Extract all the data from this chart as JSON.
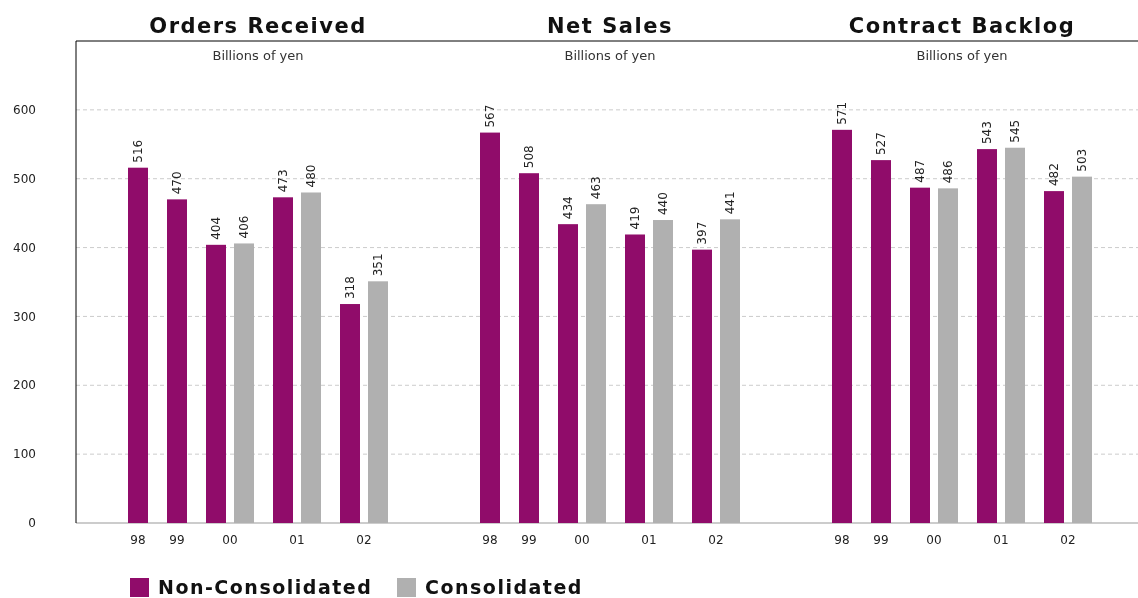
{
  "chart_data": [
    {
      "type": "bar",
      "title": "Orders Received",
      "subtitle": "Billions of yen",
      "categories": [
        "98",
        "99",
        "00",
        "01",
        "02"
      ],
      "series": [
        {
          "name": "Non-Consolidated",
          "color": "#900c6a",
          "values": [
            516,
            470,
            404,
            473,
            318
          ]
        },
        {
          "name": "Consolidated",
          "color": "#b0b0b0",
          "values": [
            null,
            null,
            406,
            480,
            351
          ]
        }
      ],
      "ylim": [
        0,
        700
      ],
      "yticks": [
        0,
        100,
        200,
        300,
        400,
        500,
        600
      ],
      "grid": "y",
      "data_labels": true,
      "legend": "bottom"
    },
    {
      "type": "bar",
      "title": "Net Sales",
      "subtitle": "Billions of yen",
      "categories": [
        "98",
        "99",
        "00",
        "01",
        "02"
      ],
      "series": [
        {
          "color": "#900c6a",
          "values": [
            567,
            508,
            434,
            419,
            397
          ]
        },
        {
          "color": "#b0b0b0",
          "values": [
            null,
            null,
            463,
            440,
            441
          ]
        }
      ],
      "ylim": [
        0,
        700
      ],
      "yticks": [
        0,
        100,
        200,
        300,
        400,
        500,
        600
      ],
      "grid": "y",
      "data_labels": true,
      "tick_labels": "x"
    },
    {
      "type": "bar",
      "title": "Contract Backlog",
      "subtitle": "Billions of yen",
      "categories": [
        "98",
        "99",
        "00",
        "01",
        "02"
      ],
      "series": [
        {
          "color": "#900c6a",
          "values": [
            571,
            527,
            487,
            543,
            482
          ]
        },
        {
          "color": "#b0b0b0",
          "values": [
            null,
            null,
            486,
            545,
            503
          ]
        }
      ],
      "ylim": [
        0,
        700
      ],
      "yticks": [
        0,
        100,
        200,
        300,
        400,
        500,
        600
      ],
      "grid": "y",
      "data_labels": true,
      "tick_labels": "x"
    }
  ]
}
